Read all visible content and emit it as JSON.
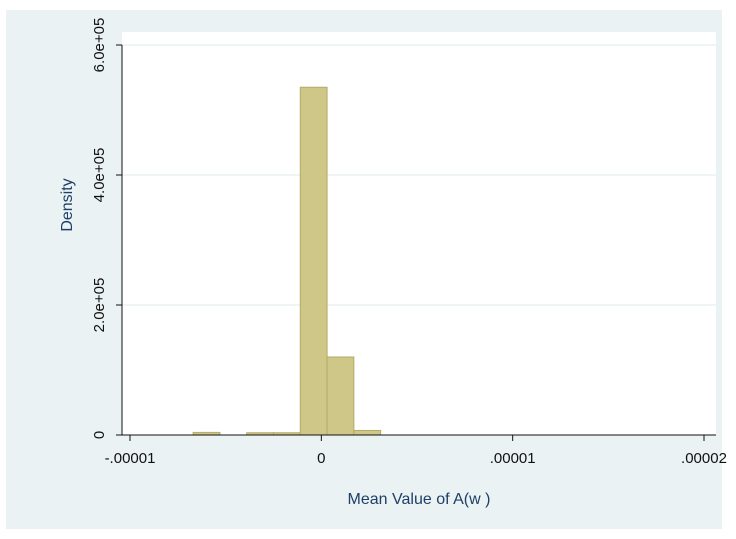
{
  "chart_data": {
    "type": "bar",
    "subtype": "histogram",
    "title": "",
    "xlabel": "Mean Value of A(w )",
    "ylabel": "Density",
    "xlim": [
      -1.02e-05,
      2.02e-05
    ],
    "ylim": [
      0,
      600000
    ],
    "x_ticks": [
      -1e-05,
      0,
      1e-05,
      2e-05
    ],
    "x_tick_labels": [
      "-.00001",
      "0",
      ".00001",
      ".00002"
    ],
    "y_ticks": [
      0,
      200000,
      400000,
      600000
    ],
    "y_tick_labels": [
      "0",
      "2.0e+05",
      "4.0e+05",
      "6.0e+05"
    ],
    "grid": "horizontal",
    "bin_width": 1.4e-06,
    "bins": [
      {
        "x0": -6.7e-06,
        "x1": -5.3e-06,
        "value": 4000
      },
      {
        "x0": -3.9e-06,
        "x1": -2.5e-06,
        "value": 3500
      },
      {
        "x0": -2.5e-06,
        "x1": -1.1e-06,
        "value": 3500
      },
      {
        "x0": -1.1e-06,
        "x1": 3e-07,
        "value": 535000
      },
      {
        "x0": 3e-07,
        "x1": 1.7e-06,
        "value": 120000
      },
      {
        "x0": 1.7e-06,
        "x1": 3.1e-06,
        "value": 7000
      }
    ],
    "colors": {
      "bar_fill": "#cfc787",
      "bar_edge": "#b3ab6a",
      "plot_bg": "#ffffff",
      "outer_bg": "#eaf2f3",
      "grid": "#eaf2f3",
      "axis": "#111111",
      "axis_title": "#1e3f66"
    }
  }
}
